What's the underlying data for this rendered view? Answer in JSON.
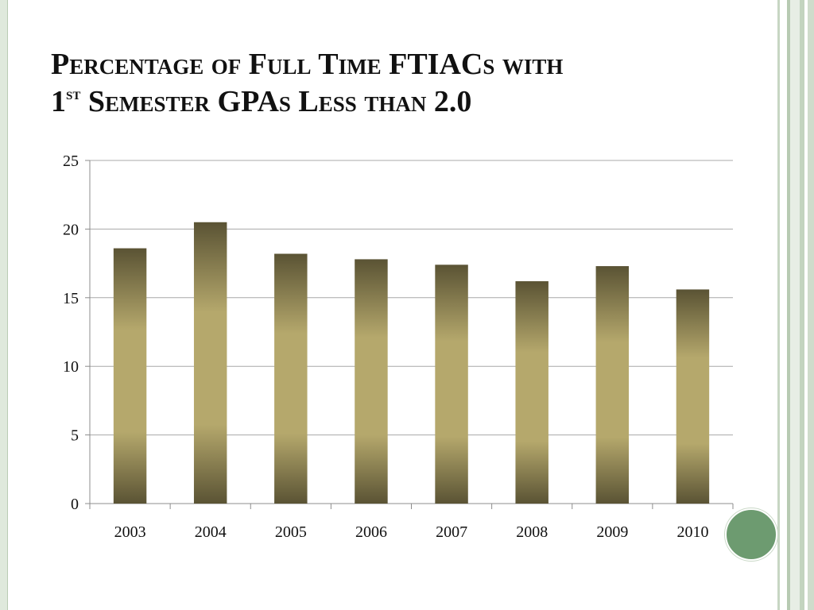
{
  "slide": {
    "title_parts": {
      "line1": "Percentage of Full Time FTIACs with",
      "line2_num": "1",
      "line2_sup": "st",
      "line2_rest": " Semester GPAs Less than 2.0"
    }
  },
  "chart_data": {
    "type": "bar",
    "title": "Percentage of Full Time FTIACs with 1st Semester GPAs Less than 2.0",
    "categories": [
      "2003",
      "2004",
      "2005",
      "2006",
      "2007",
      "2008",
      "2009",
      "2010"
    ],
    "values": [
      18.6,
      20.5,
      18.2,
      17.8,
      17.4,
      16.2,
      17.3,
      15.6
    ],
    "ylim": [
      0,
      25
    ],
    "yticks": [
      0,
      5,
      10,
      15,
      20,
      25
    ],
    "xlabel": "",
    "ylabel": "",
    "grid": true,
    "legend": "none",
    "colors": {
      "bar_mid": "#b5a86c",
      "bar_edge": "#5a5334",
      "grid": "#a8a8a8",
      "axis": "#8c8c8c"
    }
  }
}
